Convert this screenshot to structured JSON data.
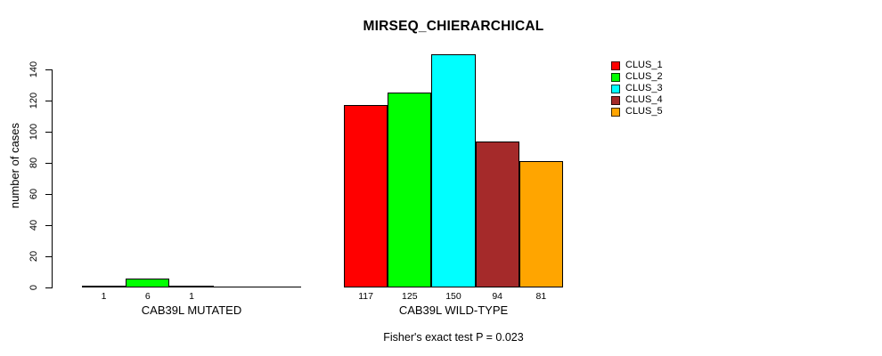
{
  "chart_data": {
    "type": "bar",
    "title": "MIRSEQ_CHIERARCHICAL",
    "ylabel": "number of cases",
    "xlabel": "",
    "ylim": [
      0,
      150
    ],
    "yticks": [
      0,
      20,
      40,
      60,
      80,
      100,
      120,
      140
    ],
    "grid": false,
    "legend_position": "top-right",
    "legend": [
      {
        "label": "CLUS_1",
        "color": "#FF0000"
      },
      {
        "label": "CLUS_2",
        "color": "#00FF00"
      },
      {
        "label": "CLUS_3",
        "color": "#00FFFF"
      },
      {
        "label": "CLUS_4",
        "color": "#A52A2A"
      },
      {
        "label": "CLUS_5",
        "color": "#FFA500"
      }
    ],
    "groups": [
      {
        "label": "CAB39L MUTATED",
        "values": [
          1,
          6,
          1,
          0,
          0
        ],
        "bar_labels": [
          "1",
          "6",
          "1",
          "",
          ""
        ]
      },
      {
        "label": "CAB39L WILD-TYPE",
        "values": [
          117,
          125,
          150,
          94,
          81
        ],
        "bar_labels": [
          "117",
          "125",
          "150",
          "94",
          "81"
        ]
      }
    ],
    "annotation": "Fisher's exact test P = 0.023"
  }
}
